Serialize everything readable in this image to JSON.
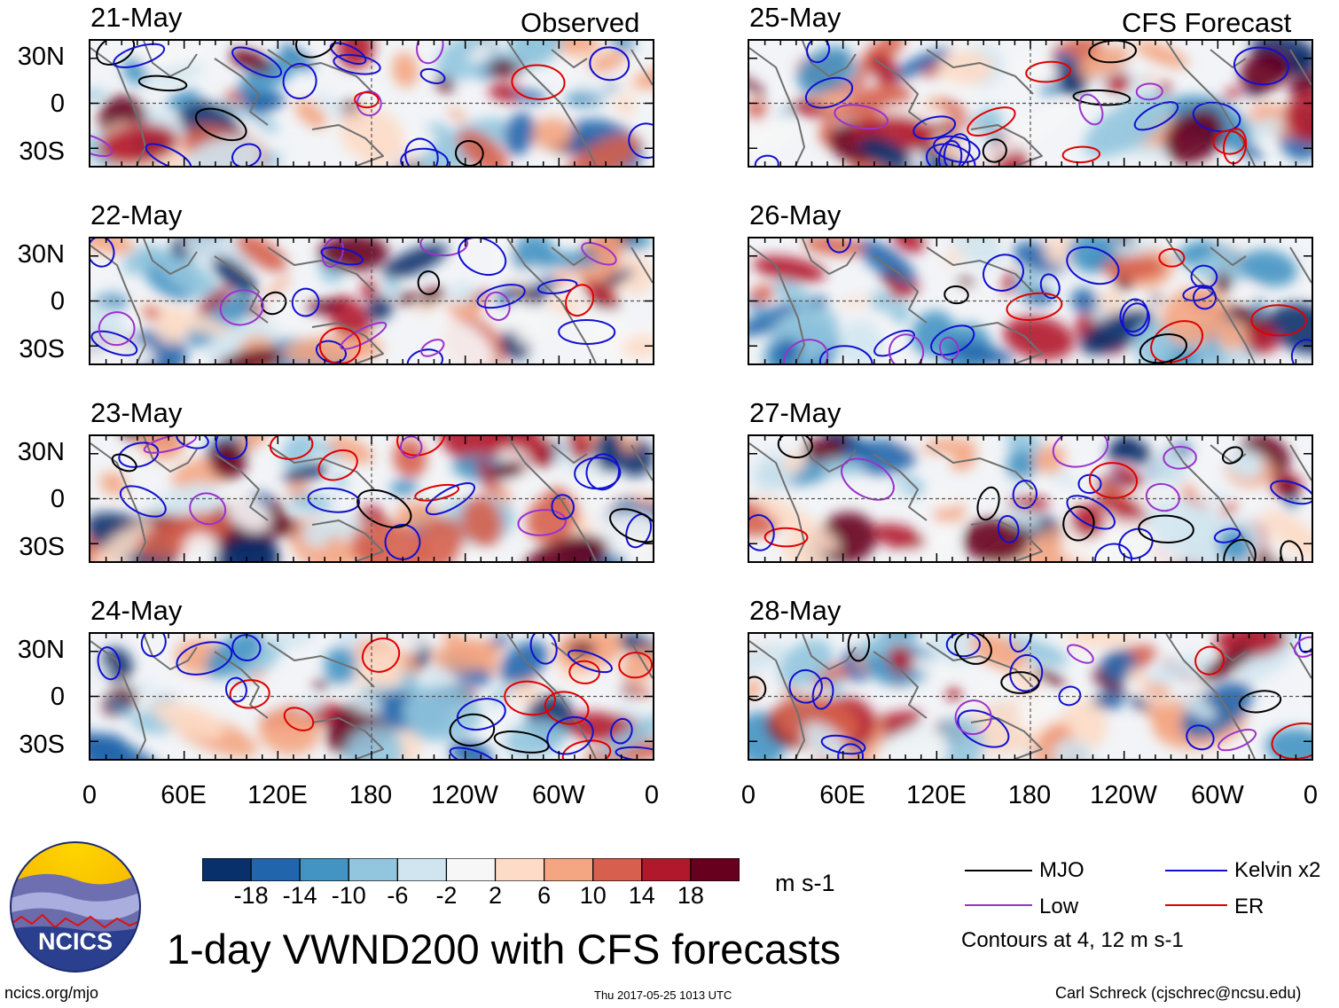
{
  "headers": {
    "observed": "Observed",
    "forecast": "CFS Forecast"
  },
  "panels": [
    {
      "date": "21-May",
      "kind": "observed"
    },
    {
      "date": "22-May",
      "kind": "observed"
    },
    {
      "date": "23-May",
      "kind": "observed"
    },
    {
      "date": "24-May",
      "kind": "observed"
    },
    {
      "date": "25-May",
      "kind": "forecast"
    },
    {
      "date": "26-May",
      "kind": "forecast"
    },
    {
      "date": "27-May",
      "kind": "forecast"
    },
    {
      "date": "28-May",
      "kind": "forecast"
    }
  ],
  "lat_labels": [
    "30N",
    "0",
    "30S"
  ],
  "lon_labels": [
    "0",
    "60E",
    "120E",
    "180",
    "120W",
    "60W",
    "0"
  ],
  "colorbar": {
    "colors": [
      "#08306b",
      "#2166ac",
      "#4393c3",
      "#92c5de",
      "#d1e5f0",
      "#f7f7f7",
      "#fddbc7",
      "#f4a582",
      "#d6604d",
      "#b2182b",
      "#67001f"
    ],
    "ticks": [
      "-18",
      "-14",
      "-10",
      "-6",
      "-2",
      "2",
      "6",
      "10",
      "14",
      "18"
    ],
    "unit": "m s-1"
  },
  "legend": {
    "items": [
      {
        "label": "MJO",
        "color": "#000000"
      },
      {
        "label": "Kelvin x2",
        "color": "#1010d0"
      },
      {
        "label": "Low",
        "color": "#9a32cd"
      },
      {
        "label": "ER",
        "color": "#e00000"
      }
    ],
    "note": "Contours at 4, 12 m s-1"
  },
  "title": "1-day VWND200 with CFS forecasts",
  "logo_text": "NCICS",
  "footer": {
    "url": "ncics.org/mjo",
    "timestamp": "Thu 2017-05-25 1013 UTC",
    "credit": "Carl Schreck (cjschrec@ncsu.edu)"
  }
}
